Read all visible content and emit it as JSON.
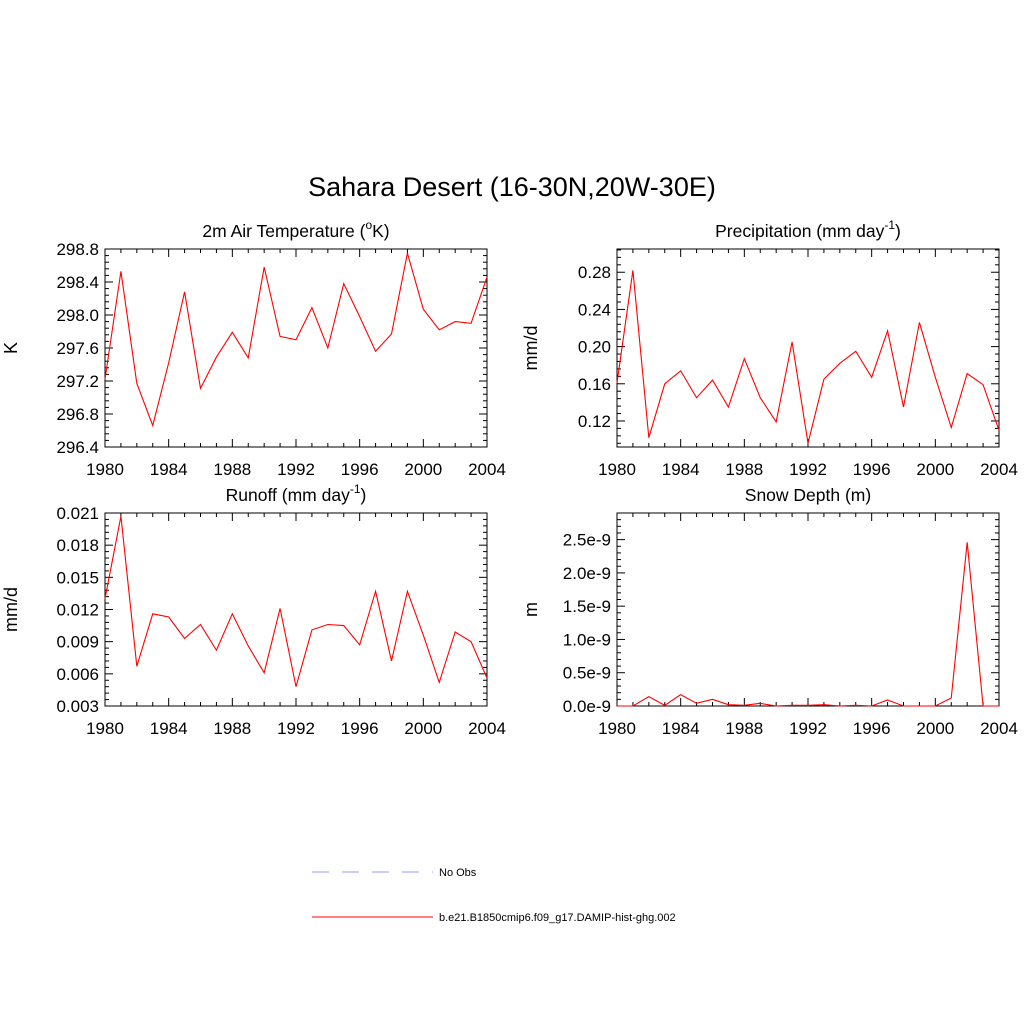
{
  "figure": {
    "title": "Sahara Desert (16-30N,20W-30E)"
  },
  "legend": {
    "items": [
      {
        "label": "No Obs",
        "color": "#9999ff",
        "style": "dashed"
      },
      {
        "label": "b.e21.B1850cmip6.f09_g17.DAMIP-hist-ghg.002",
        "color": "#ff0000",
        "style": "solid"
      }
    ]
  },
  "chart_data": [
    {
      "type": "line",
      "title": "2m Air Temperature (",
      "title_sup": "o",
      "title_after": "K)",
      "xlabel": "",
      "ylabel": "K",
      "xlim": [
        1980,
        2004
      ],
      "ylim": [
        296.4,
        298.8
      ],
      "xticks": [
        1980,
        1984,
        1988,
        1992,
        1996,
        2000,
        2004
      ],
      "xtick_labels": [
        "1980",
        "1984",
        "1988",
        "1992",
        "1996",
        "2000",
        "2004"
      ],
      "yticks": [
        296.4,
        296.8,
        297.2,
        297.6,
        298.0,
        298.4,
        298.8
      ],
      "ytick_labels": [
        "296.4",
        "296.8",
        "297.2",
        "297.6",
        "298.0",
        "298.4",
        "298.8"
      ],
      "x": [
        1980,
        1981,
        1982,
        1983,
        1984,
        1985,
        1986,
        1987,
        1988,
        1989,
        1990,
        1991,
        1992,
        1993,
        1994,
        1995,
        1996,
        1997,
        1998,
        1999,
        2000,
        2001,
        2002,
        2003,
        2004
      ],
      "series": [
        {
          "color": "#ff0000",
          "values": [
            297.22,
            298.53,
            297.17,
            296.66,
            297.42,
            298.28,
            297.11,
            297.49,
            297.79,
            297.48,
            298.58,
            297.74,
            297.7,
            298.09,
            297.6,
            298.38,
            297.98,
            297.56,
            297.77,
            298.75,
            298.07,
            297.82,
            297.92,
            297.9,
            298.46
          ]
        }
      ]
    },
    {
      "type": "line",
      "title": "Precipitation (mm day",
      "title_sup": "-1",
      "title_after": ")",
      "xlabel": "",
      "ylabel": "mm/d",
      "xlim": [
        1980,
        2004
      ],
      "ylim": [
        0.092,
        0.305
      ],
      "xticks": [
        1980,
        1984,
        1988,
        1992,
        1996,
        2000,
        2004
      ],
      "xtick_labels": [
        "1980",
        "1984",
        "1988",
        "1992",
        "1996",
        "2000",
        "2004"
      ],
      "yticks": [
        0.12,
        0.16,
        0.2,
        0.24,
        0.28
      ],
      "ytick_labels": [
        "0.12",
        "0.16",
        "0.20",
        "0.24",
        "0.28"
      ],
      "x": [
        1980,
        1981,
        1982,
        1983,
        1984,
        1985,
        1986,
        1987,
        1988,
        1989,
        1990,
        1991,
        1992,
        1993,
        1994,
        1995,
        1996,
        1997,
        1998,
        1999,
        2000,
        2001,
        2002,
        2003,
        2004
      ],
      "series": [
        {
          "color": "#ff0000",
          "values": [
            0.161,
            0.282,
            0.102,
            0.16,
            0.174,
            0.145,
            0.164,
            0.135,
            0.187,
            0.145,
            0.119,
            0.205,
            0.096,
            0.165,
            0.182,
            0.195,
            0.167,
            0.217,
            0.135,
            0.226,
            0.167,
            0.113,
            0.171,
            0.159,
            0.11
          ]
        }
      ]
    },
    {
      "type": "line",
      "title": "Runoff (mm day",
      "title_sup": "-1",
      "title_after": ")",
      "xlabel": "",
      "ylabel": "mm/d",
      "xlim": [
        1980,
        2004
      ],
      "ylim": [
        0.003,
        0.021
      ],
      "xticks": [
        1980,
        1984,
        1988,
        1992,
        1996,
        2000,
        2004
      ],
      "xtick_labels": [
        "1980",
        "1984",
        "1988",
        "1992",
        "1996",
        "2000",
        "2004"
      ],
      "yticks": [
        0.003,
        0.006,
        0.009,
        0.012,
        0.015,
        0.018,
        0.021
      ],
      "ytick_labels": [
        "0.003",
        "0.006",
        "0.009",
        "0.012",
        "0.015",
        "0.018",
        "0.021"
      ],
      "x": [
        1980,
        1981,
        1982,
        1983,
        1984,
        1985,
        1986,
        1987,
        1988,
        1989,
        1990,
        1991,
        1992,
        1993,
        1994,
        1995,
        1996,
        1997,
        1998,
        1999,
        2000,
        2001,
        2002,
        2003,
        2004
      ],
      "series": [
        {
          "color": "#ff0000",
          "values": [
            0.013,
            0.0207,
            0.0067,
            0.0116,
            0.0113,
            0.0093,
            0.0106,
            0.0082,
            0.0116,
            0.0086,
            0.0061,
            0.0121,
            0.0048,
            0.0101,
            0.0106,
            0.0105,
            0.0087,
            0.0137,
            0.0072,
            0.0137,
            0.0096,
            0.0052,
            0.0099,
            0.009,
            0.0056
          ]
        }
      ]
    },
    {
      "type": "line",
      "title": "Snow Depth (m)",
      "title_sup": "",
      "title_after": "",
      "xlabel": "",
      "ylabel": "m",
      "xlim": [
        1980,
        2004
      ],
      "ylim": [
        0.0,
        2.9e-09
      ],
      "xticks": [
        1980,
        1984,
        1988,
        1992,
        1996,
        2000,
        2004
      ],
      "xtick_labels": [
        "1980",
        "1984",
        "1988",
        "1992",
        "1996",
        "2000",
        "2004"
      ],
      "yticks": [
        0.0,
        5e-10,
        1e-09,
        1.5e-09,
        2e-09,
        2.5e-09
      ],
      "ytick_labels": [
        "0.0e-9",
        "0.5e-9",
        "1.0e-9",
        "1.5e-9",
        "2.0e-9",
        "2.5e-9"
      ],
      "x": [
        1980,
        1981,
        1982,
        1983,
        1984,
        1985,
        1986,
        1987,
        1988,
        1989,
        1990,
        1991,
        1992,
        1993,
        1994,
        1995,
        1996,
        1997,
        1998,
        1999,
        2000,
        2001,
        2002,
        2003,
        2004
      ],
      "series": [
        {
          "color": "#ff0000",
          "values": [
            0.0,
            0.0,
            1.4e-10,
            1e-11,
            1.7e-10,
            4e-11,
            1e-10,
            2e-11,
            1e-11,
            4e-11,
            0.0,
            1e-11,
            1e-11,
            2e-11,
            0.0,
            1e-11,
            0.0,
            9e-11,
            0.0,
            0.0,
            0.0,
            1.2e-10,
            2.46e-09,
            0.0,
            0.0
          ]
        }
      ]
    }
  ]
}
